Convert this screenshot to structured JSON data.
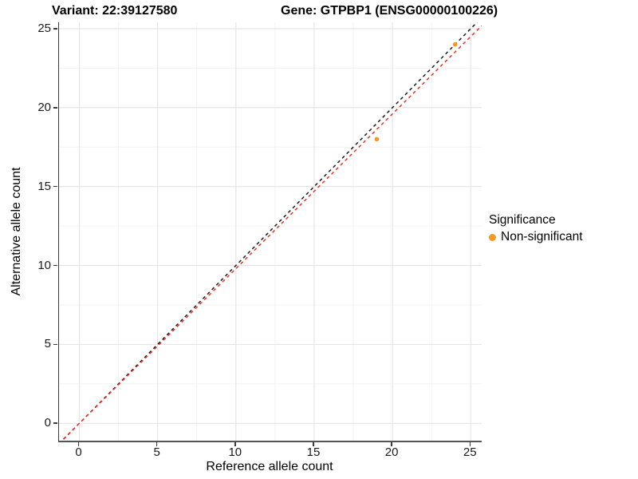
{
  "titles": {
    "variant": "Variant: 22:39127580",
    "gene": "Gene: GTPBP1 (ENSG00000100226)"
  },
  "legend": {
    "title": "Significance",
    "position": "right",
    "items": [
      {
        "label": "Non-significant",
        "marker": "dot",
        "color": "#F89820"
      }
    ]
  },
  "colors": {
    "point": "#F89820",
    "identity_line": "#1a1a1a",
    "expected_line": "#EE2E24",
    "grid_major": "#E3E3E3",
    "grid_minor": "#F1F1F1",
    "axis_line": "#3a3a3a",
    "background": "#FFFFFF"
  },
  "chart_data": {
    "type": "scatter",
    "title": "",
    "xlabel": "Reference allele count",
    "ylabel": "Alternative allele count",
    "x_ticks": [
      0,
      5,
      10,
      15,
      20,
      25
    ],
    "y_ticks": [
      0,
      5,
      10,
      15,
      20,
      25
    ],
    "xlim": [
      -1.3,
      25.7
    ],
    "ylim": [
      -1.1,
      25.4
    ],
    "grid": "major+minor",
    "legend_position": "right",
    "series": [
      {
        "name": "Non-significant",
        "color": "#F89820",
        "points": [
          {
            "x": 19,
            "y": 18
          },
          {
            "x": 24,
            "y": 24
          }
        ]
      }
    ],
    "lines": [
      {
        "name": "identity",
        "slope": 1,
        "intercept": 0,
        "style": "dashed",
        "color": "#1a1a1a"
      },
      {
        "name": "expected-ratio",
        "slope": 0.98,
        "intercept": 0,
        "style": "dashed",
        "color": "#EE2E24"
      }
    ]
  }
}
